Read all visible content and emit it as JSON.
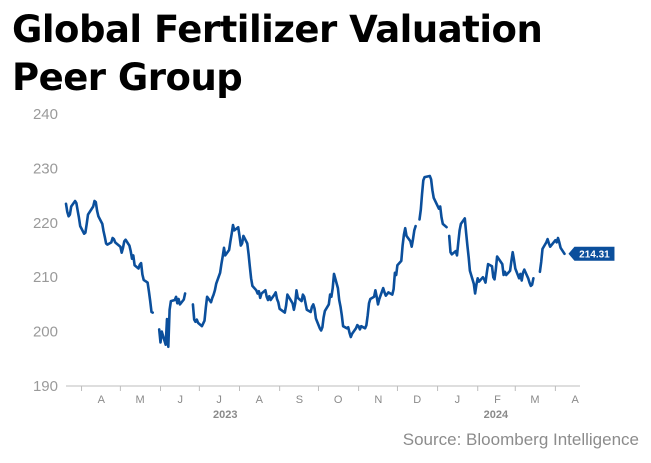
{
  "chart_data": {
    "type": "line",
    "title": "Global Fertilizer Valuation Peer Group",
    "source": "Source: Bloomberg Intelligence",
    "xlabel": "",
    "ylabel": "",
    "ylim": [
      190,
      240
    ],
    "yticks": [
      190,
      200,
      210,
      220,
      230,
      240
    ],
    "xlim": [
      "2023-03-20",
      "2024-04-20"
    ],
    "month_ticks": [
      {
        "label": "A",
        "date": "2023-04-01"
      },
      {
        "label": "M",
        "date": "2023-05-01"
      },
      {
        "label": "J",
        "date": "2023-06-01"
      },
      {
        "label": "J",
        "date": "2023-07-01"
      },
      {
        "label": "A",
        "date": "2023-08-01"
      },
      {
        "label": "S",
        "date": "2023-09-01"
      },
      {
        "label": "O",
        "date": "2023-10-01"
      },
      {
        "label": "N",
        "date": "2023-11-01"
      },
      {
        "label": "D",
        "date": "2023-12-01"
      },
      {
        "label": "J",
        "date": "2024-01-01"
      },
      {
        "label": "F",
        "date": "2024-02-01"
      },
      {
        "label": "M",
        "date": "2024-03-01"
      },
      {
        "label": "A",
        "date": "2024-04-01"
      }
    ],
    "year_labels": [
      {
        "label": "2023",
        "date": "2023-07-21"
      },
      {
        "label": "2024",
        "date": "2024-02-15"
      }
    ],
    "last_value_label": "214.31",
    "line_color": "#0b4f9c",
    "grid": false,
    "legend": "none",
    "series": [
      {
        "values": [
          [
            "2023-03-20",
            223.5
          ],
          [
            "2023-03-21",
            222.0
          ],
          [
            "2023-03-22",
            221.2
          ],
          [
            "2023-03-23",
            221.5
          ],
          [
            "2023-03-24",
            223.0
          ],
          [
            "2023-03-27",
            224.0
          ],
          [
            "2023-03-28",
            223.6
          ],
          [
            "2023-03-29",
            222.2
          ],
          [
            "2023-03-30",
            221.0
          ],
          [
            "2023-03-31",
            219.4
          ],
          [
            "2023-04-03",
            218.0
          ],
          [
            "2023-04-04",
            218.2
          ],
          [
            "2023-04-05",
            219.8
          ],
          [
            "2023-04-06",
            221.5
          ],
          [
            "2023-04-10",
            223.0
          ],
          [
            "2023-04-11",
            224.0
          ],
          [
            "2023-04-12",
            223.8
          ],
          [
            "2023-04-13",
            222.2
          ],
          [
            "2023-04-14",
            221.2
          ],
          [
            "2023-04-17",
            219.8
          ],
          [
            "2023-04-18",
            218.5
          ],
          [
            "2023-04-19",
            217.4
          ],
          [
            "2023-04-20",
            216.2
          ],
          [
            "2023-04-21",
            216.0
          ],
          [
            "2023-04-24",
            216.4
          ],
          [
            "2023-04-25",
            217.2
          ],
          [
            "2023-04-26",
            217.0
          ],
          [
            "2023-04-27",
            216.4
          ],
          [
            "2023-04-28",
            216.2
          ],
          [
            "2023-05-01",
            215.6
          ],
          [
            "2023-05-02",
            214.5
          ],
          [
            "2023-05-03",
            215.4
          ],
          [
            "2023-05-04",
            216.6
          ],
          [
            "2023-05-05",
            216.9
          ],
          [
            "2023-05-08",
            215.8
          ],
          [
            "2023-05-09",
            214.8
          ],
          [
            "2023-05-10",
            213.4
          ],
          [
            "2023-05-11",
            214.0
          ],
          [
            "2023-05-12",
            212.2
          ],
          [
            "2023-05-15",
            211.6
          ],
          [
            "2023-05-16",
            212.3
          ],
          [
            "2023-05-17",
            212.6
          ],
          [
            "2023-05-18",
            210.5
          ],
          [
            "2023-05-19",
            209.5
          ],
          [
            "2023-05-22",
            209.0
          ],
          [
            "2023-05-23",
            207.4
          ],
          [
            "2023-05-24",
            205.6
          ],
          [
            "2023-05-25",
            203.6
          ],
          [
            "2023-05-26",
            203.5
          ],
          [
            null,
            null
          ],
          [
            "2023-05-31",
            200.4
          ],
          [
            "2023-06-01",
            198.0
          ],
          [
            "2023-06-02",
            200.0
          ],
          [
            "2023-06-05",
            197.6
          ],
          [
            "2023-06-06",
            202.3
          ],
          [
            "2023-06-07",
            197.2
          ],
          [
            "2023-06-08",
            204.0
          ],
          [
            "2023-06-09",
            205.6
          ],
          [
            "2023-06-12",
            205.8
          ],
          [
            "2023-06-13",
            206.4
          ],
          [
            "2023-06-14",
            205.2
          ],
          [
            "2023-06-15",
            206.0
          ],
          [
            "2023-06-16",
            205.0
          ],
          [
            "2023-06-19",
            205.9
          ],
          [
            "2023-06-20",
            207.0
          ],
          [
            null,
            null
          ],
          [
            "2023-06-26",
            205.0
          ],
          [
            "2023-06-27",
            202.2
          ],
          [
            "2023-06-28",
            201.8
          ],
          [
            "2023-06-29",
            202.2
          ],
          [
            "2023-06-30",
            201.6
          ],
          [
            "2023-07-03",
            201.0
          ],
          [
            "2023-07-05",
            202.0
          ],
          [
            "2023-07-06",
            204.4
          ],
          [
            "2023-07-07",
            206.4
          ],
          [
            "2023-07-10",
            205.4
          ],
          [
            "2023-07-11",
            206.2
          ],
          [
            "2023-07-12",
            206.8
          ],
          [
            "2023-07-13",
            207.6
          ],
          [
            "2023-07-14",
            208.8
          ],
          [
            "2023-07-17",
            210.8
          ],
          [
            "2023-07-18",
            212.4
          ],
          [
            "2023-07-19",
            213.8
          ],
          [
            "2023-07-20",
            215.4
          ],
          [
            "2023-07-21",
            214.0
          ],
          [
            "2023-07-24",
            215.0
          ],
          [
            "2023-07-25",
            216.6
          ],
          [
            "2023-07-26",
            218.0
          ],
          [
            "2023-07-27",
            219.6
          ],
          [
            "2023-07-28",
            218.6
          ],
          [
            "2023-07-31",
            219.2
          ],
          [
            "2023-08-01",
            217.6
          ],
          [
            "2023-08-02",
            215.8
          ],
          [
            "2023-08-03",
            216.2
          ],
          [
            "2023-08-04",
            217.6
          ],
          [
            "2023-08-07",
            216.2
          ],
          [
            "2023-08-08",
            214.2
          ],
          [
            "2023-08-09",
            212.0
          ],
          [
            "2023-08-10",
            209.8
          ],
          [
            "2023-08-11",
            208.4
          ],
          [
            "2023-08-14",
            207.6
          ],
          [
            "2023-08-15",
            207.0
          ],
          [
            "2023-08-16",
            207.4
          ],
          [
            "2023-08-17",
            206.2
          ],
          [
            "2023-08-18",
            207.0
          ],
          [
            "2023-08-21",
            207.6
          ],
          [
            "2023-08-22",
            206.4
          ],
          [
            "2023-08-23",
            205.8
          ],
          [
            "2023-08-24",
            206.5
          ],
          [
            "2023-08-25",
            205.8
          ],
          [
            "2023-08-28",
            206.8
          ],
          [
            "2023-08-29",
            207.2
          ],
          [
            "2023-08-30",
            206.0
          ],
          [
            "2023-08-31",
            205.4
          ],
          [
            "2023-09-01",
            204.2
          ],
          [
            "2023-09-05",
            203.5
          ],
          [
            "2023-09-06",
            204.8
          ],
          [
            "2023-09-07",
            206.8
          ],
          [
            "2023-09-08",
            206.4
          ],
          [
            "2023-09-11",
            205.2
          ],
          [
            "2023-09-12",
            204.0
          ],
          [
            "2023-09-13",
            205.2
          ],
          [
            "2023-09-14",
            207.6
          ],
          [
            "2023-09-15",
            206.2
          ],
          [
            "2023-09-18",
            205.6
          ],
          [
            "2023-09-19",
            206.8
          ],
          [
            "2023-09-20",
            206.4
          ],
          [
            "2023-09-21",
            205.2
          ],
          [
            "2023-09-22",
            204.0
          ],
          [
            "2023-09-25",
            203.6
          ],
          [
            "2023-09-26",
            204.6
          ],
          [
            "2023-09-27",
            205.0
          ],
          [
            "2023-09-28",
            204.2
          ],
          [
            "2023-09-29",
            202.4
          ],
          [
            "2023-10-02",
            200.6
          ],
          [
            "2023-10-03",
            200.2
          ],
          [
            "2023-10-04",
            200.8
          ],
          [
            "2023-10-05",
            202.6
          ],
          [
            "2023-10-06",
            203.8
          ],
          [
            "2023-10-09",
            205.0
          ],
          [
            "2023-10-10",
            206.8
          ],
          [
            "2023-10-11",
            206.4
          ],
          [
            "2023-10-12",
            208.0
          ],
          [
            "2023-10-13",
            210.6
          ],
          [
            "2023-10-16",
            208.0
          ],
          [
            "2023-10-17",
            205.8
          ],
          [
            "2023-10-18",
            204.6
          ],
          [
            "2023-10-19",
            203.0
          ],
          [
            "2023-10-20",
            201.0
          ],
          [
            "2023-10-23",
            200.6
          ],
          [
            "2023-10-24",
            200.8
          ],
          [
            "2023-10-25",
            199.8
          ],
          [
            "2023-10-26",
            199.0
          ],
          [
            "2023-10-27",
            199.6
          ],
          [
            "2023-10-30",
            200.6
          ],
          [
            "2023-10-31",
            201.2
          ],
          [
            "2023-11-01",
            201.0
          ],
          [
            "2023-11-02",
            200.4
          ],
          [
            "2023-11-03",
            201.0
          ],
          [
            "2023-11-06",
            200.6
          ],
          [
            "2023-11-07",
            201.2
          ],
          [
            "2023-11-08",
            203.0
          ],
          [
            "2023-11-09",
            205.2
          ],
          [
            "2023-11-10",
            206.0
          ],
          [
            "2023-11-13",
            206.4
          ],
          [
            "2023-11-14",
            207.6
          ],
          [
            "2023-11-15",
            206.4
          ],
          [
            "2023-11-16",
            205.0
          ],
          [
            "2023-11-17",
            206.0
          ],
          [
            "2023-11-20",
            208.0
          ],
          [
            "2023-11-21",
            207.2
          ],
          [
            "2023-11-22",
            206.6
          ],
          [
            "2023-11-24",
            207.2
          ],
          [
            "2023-11-27",
            206.8
          ],
          [
            "2023-11-28",
            207.8
          ],
          [
            "2023-11-29",
            210.8
          ],
          [
            "2023-11-30",
            210.4
          ],
          [
            "2023-12-01",
            212.2
          ],
          [
            "2023-12-04",
            213.0
          ],
          [
            "2023-12-05",
            215.8
          ],
          [
            "2023-12-06",
            217.8
          ],
          [
            "2023-12-07",
            219.0
          ],
          [
            "2023-12-08",
            217.6
          ],
          [
            "2023-12-11",
            216.6
          ],
          [
            "2023-12-12",
            215.6
          ],
          [
            "2023-12-13",
            217.0
          ],
          [
            "2023-12-14",
            218.6
          ],
          [
            "2023-12-15",
            219.4
          ],
          [
            null,
            null
          ],
          [
            "2023-12-18",
            220.6
          ],
          [
            "2023-12-19",
            222.4
          ],
          [
            "2023-12-20",
            225.2
          ],
          [
            "2023-12-21",
            227.8
          ],
          [
            "2023-12-22",
            228.4
          ],
          [
            "2023-12-26",
            228.6
          ],
          [
            "2023-12-27",
            228.0
          ],
          [
            "2023-12-28",
            226.0
          ],
          [
            "2023-12-29",
            224.6
          ],
          [
            "2024-01-02",
            222.6
          ],
          [
            "2024-01-03",
            223.0
          ],
          [
            "2024-01-04",
            221.0
          ],
          [
            "2024-01-05",
            219.8
          ],
          [
            "2024-01-08",
            219.2
          ],
          [
            null,
            null
          ],
          [
            "2024-01-10",
            217.6
          ],
          [
            "2024-01-11",
            214.6
          ],
          [
            "2024-01-12",
            214.2
          ],
          [
            "2024-01-15",
            214.8
          ],
          [
            "2024-01-16",
            214.0
          ],
          [
            "2024-01-17",
            216.4
          ],
          [
            "2024-01-18",
            218.6
          ],
          [
            "2024-01-19",
            219.8
          ],
          [
            "2024-01-22",
            220.8
          ],
          [
            "2024-01-23",
            218.2
          ],
          [
            "2024-01-24",
            215.8
          ],
          [
            "2024-01-25",
            213.6
          ],
          [
            "2024-01-26",
            211.2
          ],
          [
            "2024-01-29",
            208.8
          ],
          [
            "2024-01-30",
            207.0
          ],
          [
            "2024-01-31",
            208.6
          ],
          [
            "2024-02-01",
            209.8
          ],
          [
            "2024-02-02",
            209.2
          ],
          [
            "2024-02-05",
            210.0
          ],
          [
            "2024-02-06",
            209.6
          ],
          [
            "2024-02-07",
            209.0
          ],
          [
            "2024-02-08",
            210.8
          ],
          [
            "2024-02-09",
            212.4
          ],
          [
            "2024-02-12",
            212.0
          ],
          [
            "2024-02-13",
            210.0
          ],
          [
            "2024-02-14",
            209.6
          ],
          [
            "2024-02-15",
            211.4
          ],
          [
            "2024-02-16",
            213.8
          ],
          [
            "2024-02-20",
            212.4
          ],
          [
            "2024-02-21",
            210.4
          ],
          [
            "2024-02-22",
            211.0
          ],
          [
            "2024-02-23",
            210.4
          ],
          [
            "2024-02-26",
            211.2
          ],
          [
            "2024-02-27",
            213.0
          ],
          [
            "2024-02-28",
            214.6
          ],
          [
            "2024-02-29",
            213.2
          ],
          [
            "2024-03-01",
            211.6
          ],
          [
            "2024-03-04",
            209.8
          ],
          [
            "2024-03-05",
            210.6
          ],
          [
            "2024-03-06",
            209.4
          ],
          [
            "2024-03-07",
            210.8
          ],
          [
            "2024-03-08",
            211.4
          ],
          [
            "2024-03-11",
            209.8
          ],
          [
            "2024-03-12",
            209.0
          ],
          [
            "2024-03-13",
            208.4
          ],
          [
            "2024-03-14",
            208.6
          ],
          [
            "2024-03-15",
            209.8
          ],
          [
            null,
            null
          ],
          [
            "2024-03-20",
            211.0
          ],
          [
            "2024-03-21",
            212.8
          ],
          [
            "2024-03-22",
            215.2
          ],
          [
            "2024-03-25",
            216.4
          ],
          [
            "2024-03-26",
            217.0
          ],
          [
            "2024-03-27",
            216.2
          ],
          [
            "2024-03-28",
            215.6
          ],
          [
            "2024-04-01",
            216.8
          ],
          [
            "2024-04-02",
            216.4
          ],
          [
            "2024-04-03",
            217.2
          ],
          [
            "2024-04-04",
            216.4
          ],
          [
            "2024-04-05",
            215.4
          ],
          [
            "2024-04-08",
            214.31
          ]
        ]
      }
    ]
  }
}
